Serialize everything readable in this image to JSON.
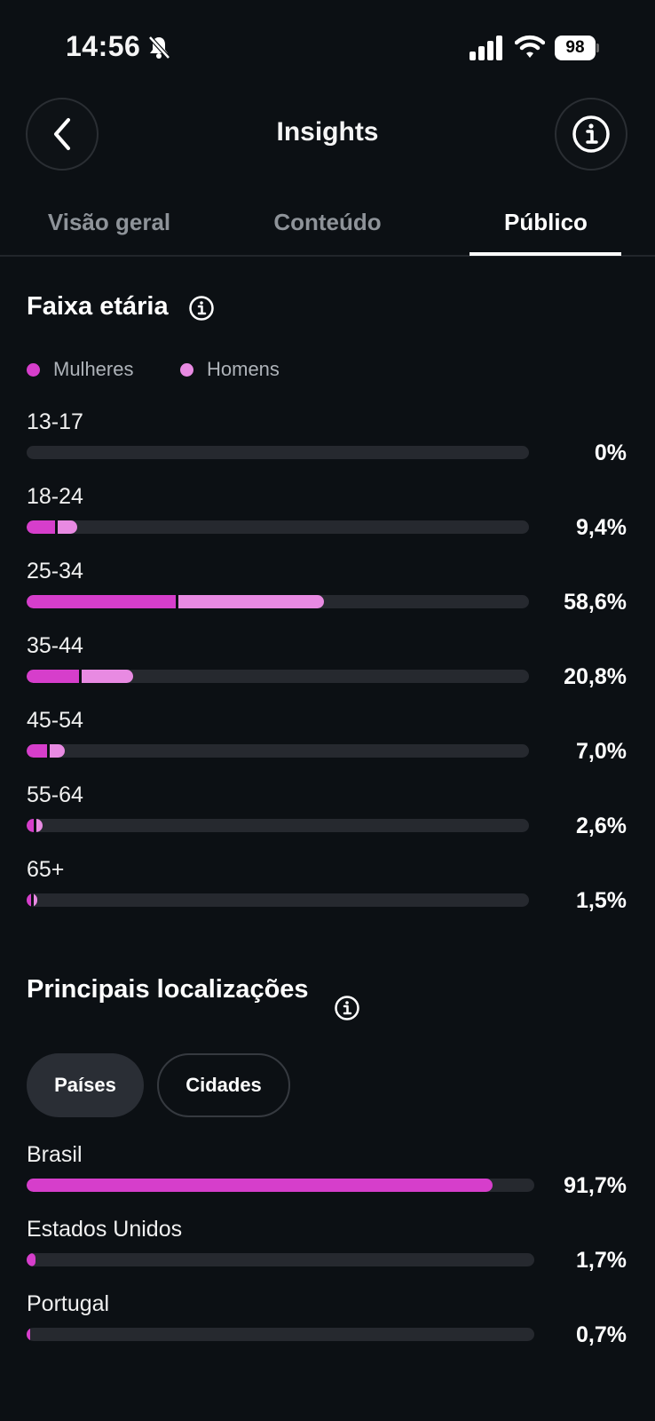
{
  "status_bar": {
    "time": "14:56",
    "battery": "98"
  },
  "header": {
    "title": "Insights"
  },
  "tabs": [
    {
      "label": "Visão geral",
      "active": false
    },
    {
      "label": "Conteúdo",
      "active": false
    },
    {
      "label": "Público",
      "active": true
    }
  ],
  "age_section": {
    "title": "Faixa etária",
    "legend": {
      "women": "Mulheres",
      "men": "Homens"
    },
    "colors": {
      "women": "#d63ecb",
      "men": "#e88ae2",
      "track": "#26292f"
    },
    "rows": [
      {
        "label": "13-17",
        "value": "0%",
        "women_pct": 0,
        "men_pct": 0
      },
      {
        "label": "18-24",
        "value": "9,4%",
        "women_pct": 5.6,
        "men_pct": 3.8
      },
      {
        "label": "25-34",
        "value": "58,6%",
        "women_pct": 29.7,
        "men_pct": 28.9
      },
      {
        "label": "35-44",
        "value": "20,8%",
        "women_pct": 10.5,
        "men_pct": 10.3
      },
      {
        "label": "45-54",
        "value": "7,0%",
        "women_pct": 4.0,
        "men_pct": 3.0
      },
      {
        "label": "55-64",
        "value": "2,6%",
        "women_pct": 1.4,
        "men_pct": 1.2
      },
      {
        "label": "65+",
        "value": "1,5%",
        "women_pct": 0.8,
        "men_pct": 0.7
      }
    ]
  },
  "locations_section": {
    "title": "Principais localizações",
    "filters": [
      {
        "label": "Países",
        "active": true
      },
      {
        "label": "Cidades",
        "active": false
      }
    ],
    "rows": [
      {
        "label": "Brasil",
        "value": "91,7%",
        "pct": 91.7
      },
      {
        "label": "Estados Unidos",
        "value": "1,7%",
        "pct": 1.7
      },
      {
        "label": "Portugal",
        "value": "0,7%",
        "pct": 0.7
      }
    ]
  }
}
